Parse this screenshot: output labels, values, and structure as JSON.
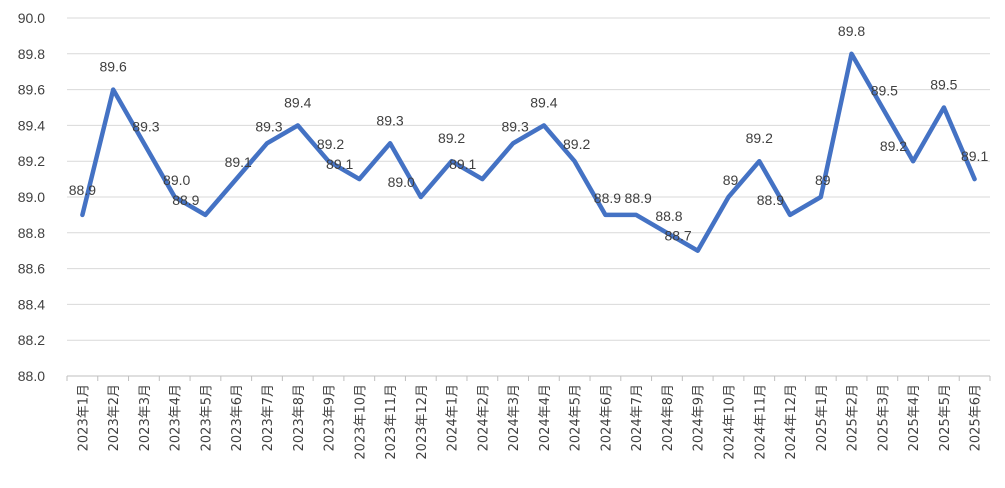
{
  "chart_data": {
    "type": "line",
    "title": "",
    "xlabel": "",
    "ylabel": "",
    "ylim": [
      88.0,
      90.0
    ],
    "y_ticks": [
      "88.0",
      "88.2",
      "88.4",
      "88.6",
      "88.8",
      "89.0",
      "89.2",
      "89.4",
      "89.6",
      "89.8",
      "90.0"
    ],
    "grid": true,
    "legend": "none",
    "colors": {
      "line": "#4472c4",
      "grid": "#d9d9d9",
      "text": "#404040"
    },
    "categories": [
      "2023年1月",
      "2023年2月",
      "2023年3月",
      "2023年4月",
      "2023年5月",
      "2023年6月",
      "2023年7月",
      "2023年8月",
      "2023年9月",
      "2023年10月",
      "2023年11月",
      "2023年12月",
      "2024年1月",
      "2024年2月",
      "2024年3月",
      "2024年4月",
      "2024年5月",
      "2024年6月",
      "2024年7月",
      "2024年8月",
      "2024年9月",
      "2024年10月",
      "2024年11月",
      "2024年12月",
      "2025年1月",
      "2025年2月",
      "2025年3月",
      "2025年4月",
      "2025年5月",
      "2025年6月"
    ],
    "series": [
      {
        "values": [
          88.9,
          89.6,
          89.3,
          89.0,
          88.9,
          89.1,
          89.3,
          89.4,
          89.2,
          89.1,
          89.3,
          89.0,
          89.2,
          89.1,
          89.3,
          89.4,
          89.2,
          88.9,
          88.9,
          88.8,
          88.7,
          89.0,
          89.2,
          88.9,
          89.0,
          89.8,
          89.5,
          89.2,
          89.5,
          89.1
        ],
        "labels": [
          "88.9",
          "89.6",
          "89.3",
          "89.0",
          "88.9",
          "89.1",
          "89.3",
          "89.4",
          "89.2",
          "89.1",
          "89.3",
          "89.0",
          "89.2",
          "89.1",
          "89.3",
          "89.4",
          "89.2",
          "88.9",
          "88.9",
          "88.8",
          "88.7",
          "89",
          "89.2",
          "88.9",
          "89",
          "89.8",
          "89.5",
          "89.2",
          "89.5",
          "89.1"
        ]
      }
    ]
  }
}
